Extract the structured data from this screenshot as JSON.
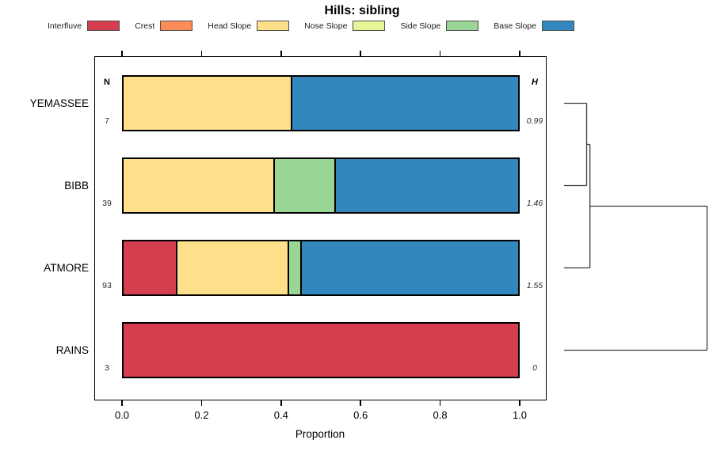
{
  "chart_data": {
    "type": "bar",
    "variant": "horizontal-stacked-proportion",
    "title": "Hills: sibling",
    "xlabel": "Proportion",
    "xlim": [
      0,
      1
    ],
    "xticks": [
      0,
      0.2,
      0.4,
      0.6,
      0.8,
      1.0
    ],
    "xtick_labels": [
      "0.0",
      "0.2",
      "0.4",
      "0.6",
      "0.8",
      "1.0"
    ],
    "grid": false,
    "legend_position": "top",
    "categories": [
      "Interfluve",
      "Crest",
      "Head Slope",
      "Nose Slope",
      "Side Slope",
      "Base Slope"
    ],
    "colors": [
      "#D53E4F",
      "#FC8D59",
      "#FEE08B",
      "#E6F598",
      "#99D594",
      "#3288BD"
    ],
    "n_header": "N",
    "h_header": "H",
    "rows": [
      {
        "name": "YEMASSEE",
        "n": "7",
        "h": "0.99",
        "proportions": [
          0,
          0,
          0.4286,
          0,
          0,
          0.5714
        ]
      },
      {
        "name": "BIBB",
        "n": "39",
        "h": "1.46",
        "proportions": [
          0,
          0,
          0.3846,
          0,
          0.1538,
          0.4615
        ]
      },
      {
        "name": "ATMORE",
        "n": "93",
        "h": "1.55",
        "proportions": [
          0.1398,
          0,
          0.2796,
          0,
          0.0323,
          0.5484
        ]
      },
      {
        "name": "RAINS",
        "n": "3",
        "h": "0",
        "proportions": [
          1,
          0,
          0,
          0,
          0,
          0
        ]
      }
    ],
    "dendrogram": {
      "axis": "right",
      "leaf_order": [
        "YEMASSEE",
        "BIBB",
        "ATMORE",
        "RAINS"
      ],
      "merges": [
        {
          "children": [
            0,
            1
          ],
          "height": 0.158
        },
        {
          "children": [
            4,
            2
          ],
          "height": 0.181
        },
        {
          "children": [
            5,
            3
          ],
          "height": 1.0
        }
      ]
    }
  }
}
